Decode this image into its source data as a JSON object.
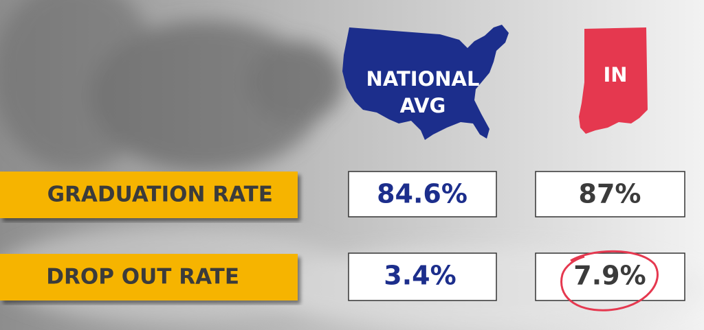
{
  "columns": [
    {
      "label_lines": [
        "NATIONAL",
        "AVG"
      ]
    },
    {
      "label_lines": [
        "IN"
      ]
    }
  ],
  "rows": [
    {
      "label": "GRADUATION RATE",
      "values": [
        "84.6%",
        "87%"
      ]
    },
    {
      "label": "DROP OUT RATE",
      "values": [
        "3.4%",
        "7.9%"
      ]
    }
  ]
}
